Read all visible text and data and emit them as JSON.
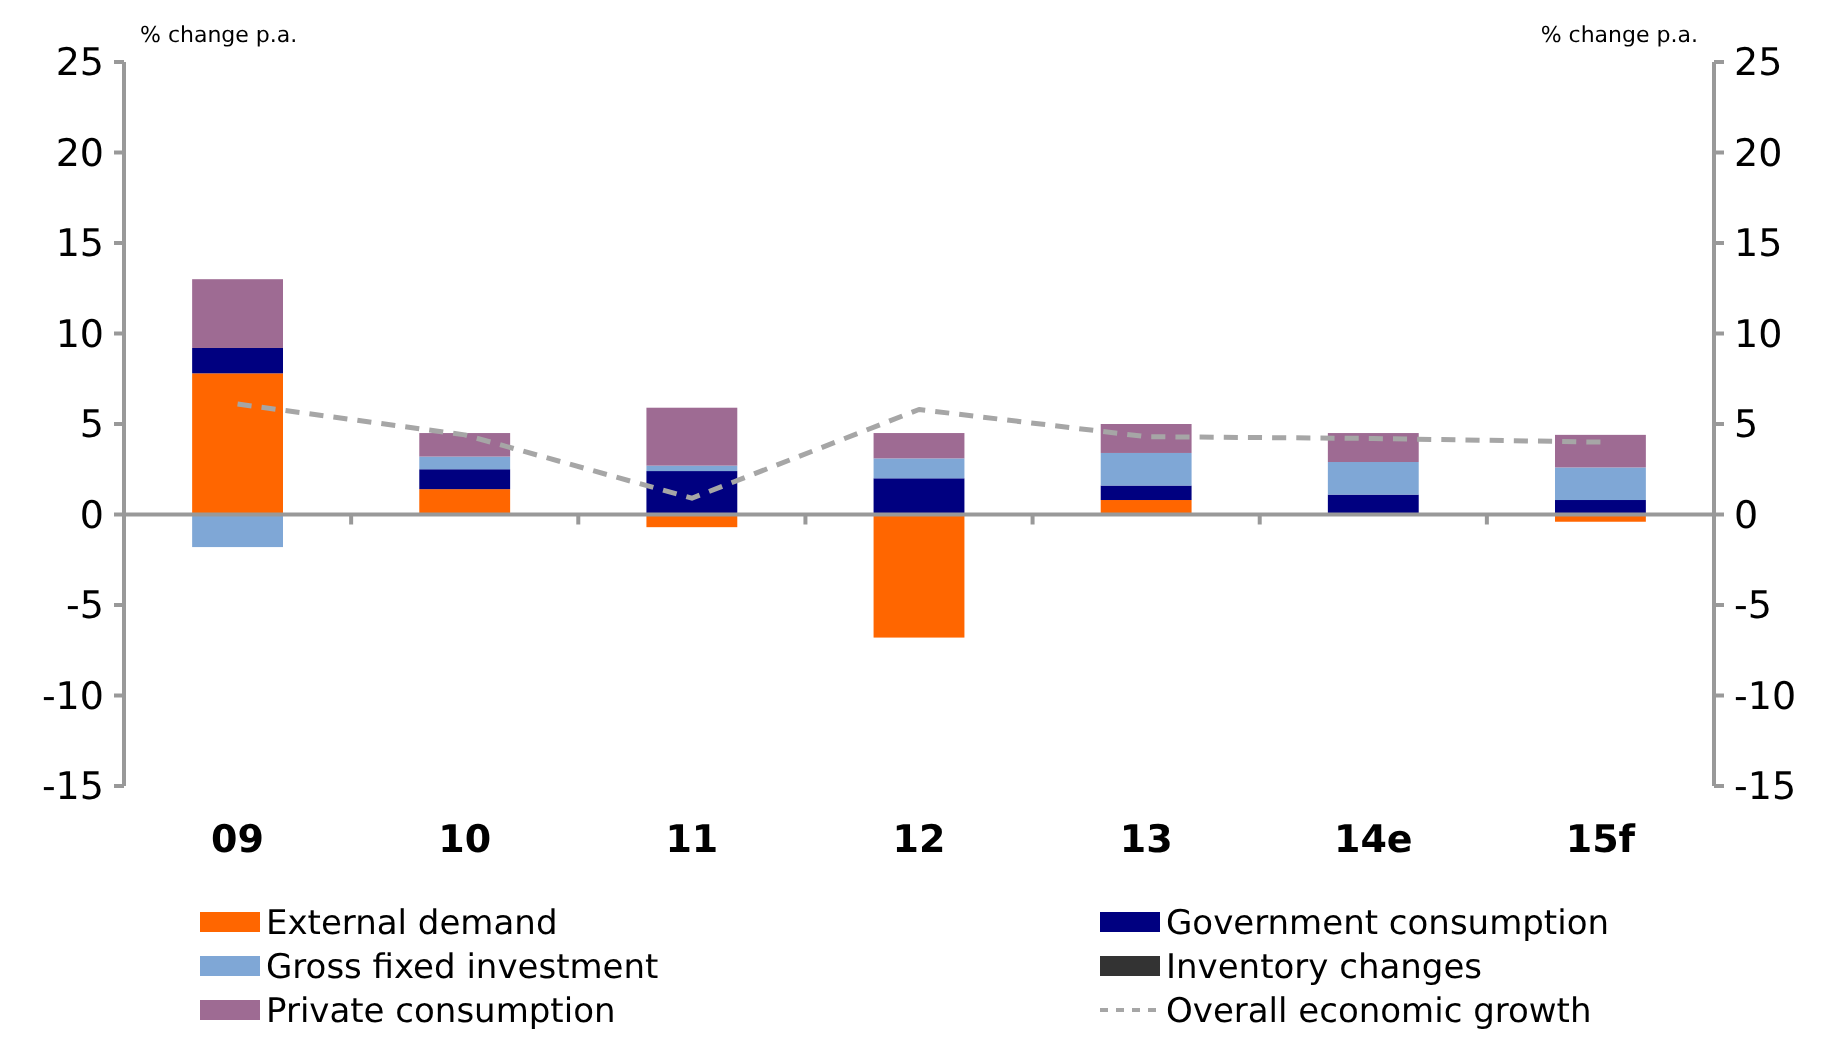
{
  "chart_data": {
    "type": "bar",
    "stacked": true,
    "ylabel": "% change p.a.",
    "y2label": "% change p.a.",
    "categories": [
      "09",
      "10",
      "11",
      "12",
      "13",
      "14e",
      "15f"
    ],
    "series": [
      {
        "name": "External demand",
        "color": "#ff6600",
        "values": [
          7.8,
          1.4,
          -0.7,
          -6.8,
          0.8,
          0,
          -0.4
        ]
      },
      {
        "name": "Government consumption",
        "color": "#000080",
        "values": [
          1.4,
          1.1,
          2.4,
          2.0,
          0.8,
          1.1,
          0.8
        ]
      },
      {
        "name": "Gross fixed investment",
        "color": "#7fa7d6",
        "values": [
          -1.8,
          0.7,
          0.3,
          1.1,
          1.8,
          1.8,
          1.8
        ]
      },
      {
        "name": "Inventory changes",
        "color": "#333333",
        "values": [
          0,
          0,
          0,
          0,
          0,
          0,
          0
        ]
      },
      {
        "name": "Private consumption",
        "color": "#9e6b93",
        "values": [
          3.8,
          1.3,
          3.2,
          1.4,
          1.6,
          1.6,
          1.8
        ]
      },
      {
        "name": "Overall economic growth",
        "type": "line",
        "line_style": "dashed",
        "color": "#a6a6a6",
        "values": [
          6.1,
          4.4,
          0.9,
          5.8,
          4.3,
          4.2,
          4.0
        ]
      }
    ],
    "ylim": [
      -15,
      25
    ],
    "yticks": [
      -15,
      -10,
      -5,
      0,
      5,
      10,
      15,
      20,
      25
    ],
    "y2lim": [
      -15,
      25
    ],
    "y2ticks": [
      -15,
      -10,
      -5,
      0,
      5,
      10,
      15,
      20,
      25
    ],
    "legend": "bottom"
  }
}
